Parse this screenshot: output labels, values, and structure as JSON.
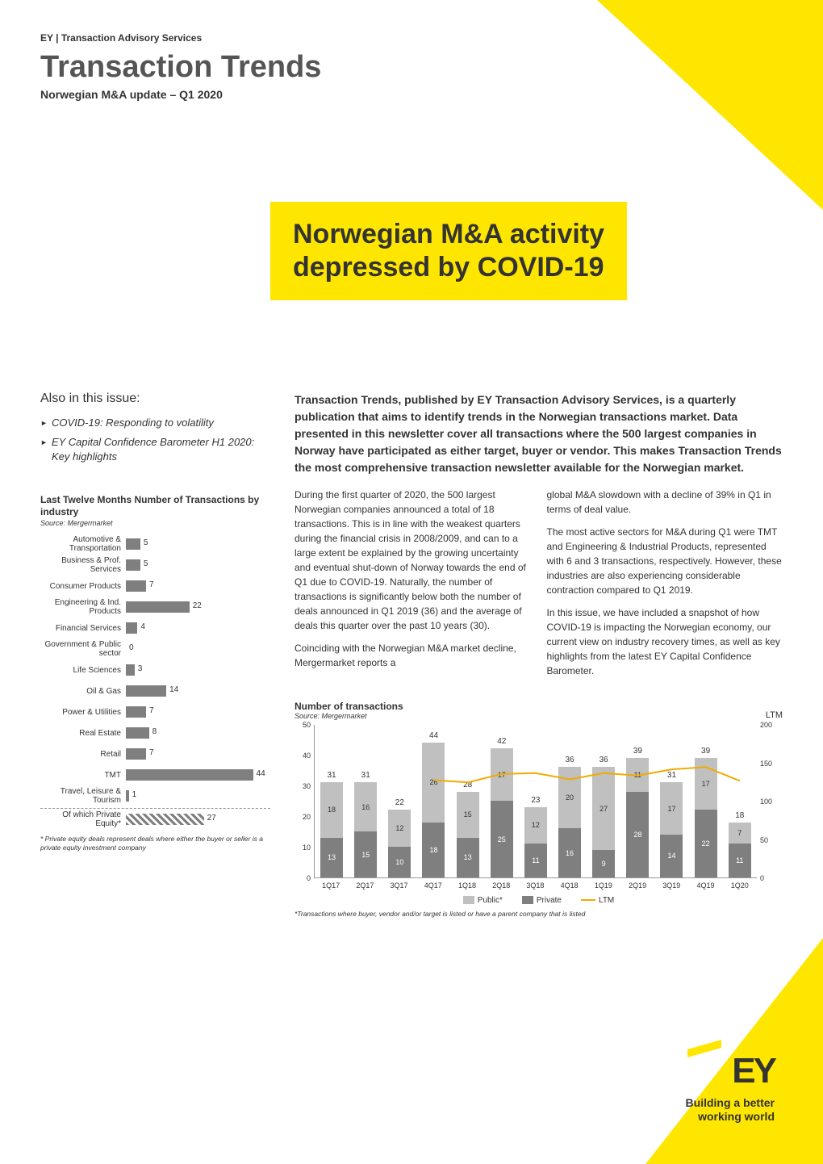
{
  "header": {
    "small": "EY | Transaction Advisory Services",
    "title": "Transaction Trends",
    "subtitle": "Norwegian M&A update – Q1 2020"
  },
  "hero": {
    "line1": "Norwegian M&A activity",
    "line2": "depressed by COVID-19"
  },
  "also": {
    "title": "Also in this issue:",
    "items": [
      "COVID-19: Responding to volatility",
      "EY Capital Confidence Barometer H1 2020: Key highlights"
    ]
  },
  "hbar_chart": {
    "type": "horizontal-bar",
    "title": "Last Twelve Months Number of Transactions by industry",
    "source": "Source: Mergermarket",
    "max": 50,
    "bar_color": "#7f7f7f",
    "label_fontsize": 10,
    "value_fontsize": 10,
    "categories": [
      {
        "label": "Automotive & Transportation",
        "value": 5
      },
      {
        "label": "Business & Prof. Services",
        "value": 5
      },
      {
        "label": "Consumer Products",
        "value": 7
      },
      {
        "label": "Engineering & Ind. Products",
        "value": 22
      },
      {
        "label": "Financial Services",
        "value": 4
      },
      {
        "label": "Government & Public sector",
        "value": 0
      },
      {
        "label": "Life Sciences",
        "value": 3
      },
      {
        "label": "Oil & Gas",
        "value": 14
      },
      {
        "label": "Power & Utilities",
        "value": 7
      },
      {
        "label": "Real Estate",
        "value": 8
      },
      {
        "label": "Retail",
        "value": 7
      },
      {
        "label": "TMT",
        "value": 44
      },
      {
        "label": "Travel, Leisure & Tourism",
        "value": 1
      }
    ],
    "extra": {
      "label": "Of which Private Equity*",
      "value": 27,
      "hatched": true
    },
    "footnote": "* Private equity deals represent deals where either the buyer or seller is a private equity investment company"
  },
  "intro": "Transaction Trends, published by EY Transaction Advisory Services, is a quarterly publication that aims to identify trends in the Norwegian transactions market. Data presented in this newsletter cover all transactions where the 500 largest companies in Norway have participated as either target, buyer or vendor. This makes Transaction Trends the most comprehensive transaction newsletter available for the Norwegian market.",
  "body": {
    "col1": [
      "During the first quarter of 2020, the 500 largest Norwegian companies announced a total of 18 transactions. This is in line with the weakest quarters during the financial crisis in 2008/2009, and can to a large extent be explained by the growing uncertainty and eventual shut-down of Norway towards the end of Q1 due to COVID-19. Naturally, the number of transactions is significantly below both the number of deals announced in Q1 2019 (36) and the average of deals this quarter over the past 10 years (30).",
      "Coinciding with the Norwegian M&A market decline, Mergermarket reports a"
    ],
    "col2": [
      "global M&A slowdown with a decline of 39% in Q1 in terms of deal value.",
      "The most active sectors for M&A during Q1 were TMT and Engineering & Industrial Products, represented with 6 and 3 transactions, respectively. However, these industries are also experiencing considerable contraction compared to Q1 2019.",
      "In this issue, we have included a snapshot of how COVID-19 is impacting the Norwegian economy, our current view on industry recovery times, as well as key highlights from the latest EY Capital Confidence Barometer."
    ]
  },
  "stacked_chart": {
    "type": "stacked-bar-with-line",
    "title": "Number of transactions",
    "source": "Source: Mergermarket",
    "ltm_label": "LTM",
    "y_left": {
      "min": 0,
      "max": 50,
      "ticks": [
        0,
        10,
        20,
        30,
        40,
        50
      ]
    },
    "y_right": {
      "min": 0,
      "max": 200,
      "ticks": [
        0,
        50,
        100,
        150,
        200
      ]
    },
    "colors": {
      "public": "#c0c0c0",
      "private": "#7f7f7f",
      "ltm_line": "#f0ab00"
    },
    "legend": {
      "public": "Public*",
      "private": "Private",
      "ltm": "LTM"
    },
    "periods": [
      {
        "label": "1Q17",
        "public": 18,
        "private": 13,
        "total": 31
      },
      {
        "label": "2Q17",
        "public": 16,
        "private": 15,
        "total": 31
      },
      {
        "label": "3Q17",
        "public": 12,
        "private": 10,
        "total": 22
      },
      {
        "label": "4Q17",
        "public": 26,
        "private": 18,
        "total": 44
      },
      {
        "label": "1Q18",
        "public": 15,
        "private": 13,
        "total": 28
      },
      {
        "label": "2Q18",
        "public": 17,
        "private": 25,
        "total": 42
      },
      {
        "label": "3Q18",
        "public": 12,
        "private": 11,
        "total": 23
      },
      {
        "label": "4Q18",
        "public": 20,
        "private": 16,
        "total": 36
      },
      {
        "label": "1Q19",
        "public": 27,
        "private": 9,
        "total": 36
      },
      {
        "label": "2Q19",
        "public": 11,
        "private": 28,
        "total": 39
      },
      {
        "label": "3Q19",
        "public": 17,
        "private": 14,
        "total": 31
      },
      {
        "label": "4Q19",
        "public": 17,
        "private": 22,
        "total": 39
      },
      {
        "label": "1Q20",
        "public": 7,
        "private": 11,
        "total": 18
      }
    ],
    "ltm_values": [
      null,
      null,
      null,
      128,
      125,
      136,
      137,
      129,
      137,
      134,
      142,
      145,
      127
    ],
    "footnote": "*Transactions where buyer, vendor and/or target is listed or have a parent company that is listed"
  },
  "logo": {
    "mark": "EY",
    "tagline1": "Building a better",
    "tagline2": "working world"
  },
  "palette": {
    "ey_yellow": "#ffe600",
    "text": "#333333",
    "bar_grey": "#7f7f7f",
    "bar_light": "#c0c0c0",
    "ltm_orange": "#f0ab00"
  }
}
